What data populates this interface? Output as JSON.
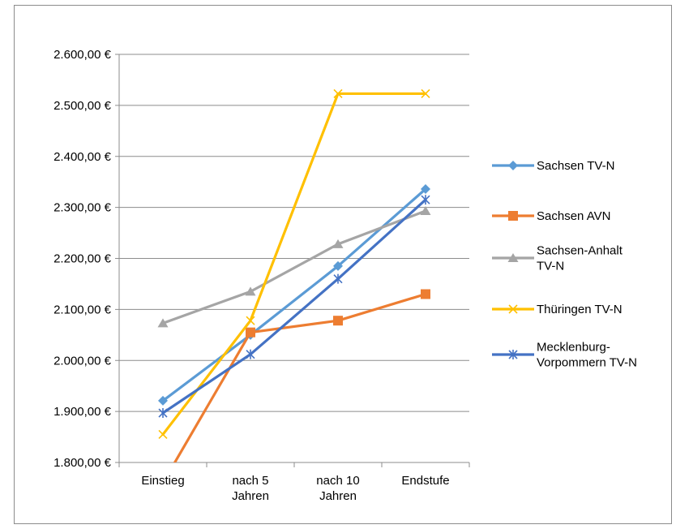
{
  "chart_data": {
    "type": "line",
    "title": "",
    "xlabel": "",
    "ylabel": "",
    "categories": [
      "Einstieg",
      "nach 5 Jahren",
      "nach 10 Jahren",
      "Endstufe"
    ],
    "category_tick_lines": [
      [
        "Einstieg"
      ],
      [
        "nach 5",
        "Jahren"
      ],
      [
        "nach 10",
        "Jahren"
      ],
      [
        "Endstufe"
      ]
    ],
    "ylim": [
      1800,
      2600
    ],
    "yticks": [
      1800,
      1900,
      2000,
      2100,
      2200,
      2300,
      2400,
      2500,
      2600
    ],
    "ytick_labels": [
      "1.800,00 €",
      "1.900,00 €",
      "2.000,00 €",
      "2.100,00 €",
      "2.200,00 €",
      "2.300,00 €",
      "2.400,00 €",
      "2.500,00 €",
      "2.600,00 €"
    ],
    "grid": true,
    "legend_position": "right",
    "series": [
      {
        "name": "Sachsen TV-N",
        "name_lines": [
          "Sachsen TV-N"
        ],
        "values": [
          1921,
          2050,
          2185,
          2336
        ],
        "color": "#5b9bd5",
        "marker": "diamond"
      },
      {
        "name": "Sachsen AVN",
        "name_lines": [
          "Sachsen AVN"
        ],
        "values": [
          1760,
          2055,
          2078,
          2130
        ],
        "color": "#ed7d31",
        "marker": "square"
      },
      {
        "name": "Sachsen-Anhalt TV-N",
        "name_lines": [
          "Sachsen-Anhalt",
          "TV-N"
        ],
        "values": [
          2073,
          2135,
          2228,
          2293
        ],
        "color": "#a5a5a5",
        "marker": "triangle"
      },
      {
        "name": "Thüringen TV-N",
        "name_lines": [
          "Thüringen TV-N"
        ],
        "values": [
          1855,
          2078,
          2523,
          2523
        ],
        "color": "#ffc000",
        "marker": "x"
      },
      {
        "name": "Mecklenburg-Vorpommern TV-N",
        "name_lines": [
          "Mecklenburg-",
          "Vorpommern TV-N"
        ],
        "values": [
          1897,
          2012,
          2160,
          2315
        ],
        "color": "#4472c4",
        "marker": "star"
      }
    ]
  }
}
